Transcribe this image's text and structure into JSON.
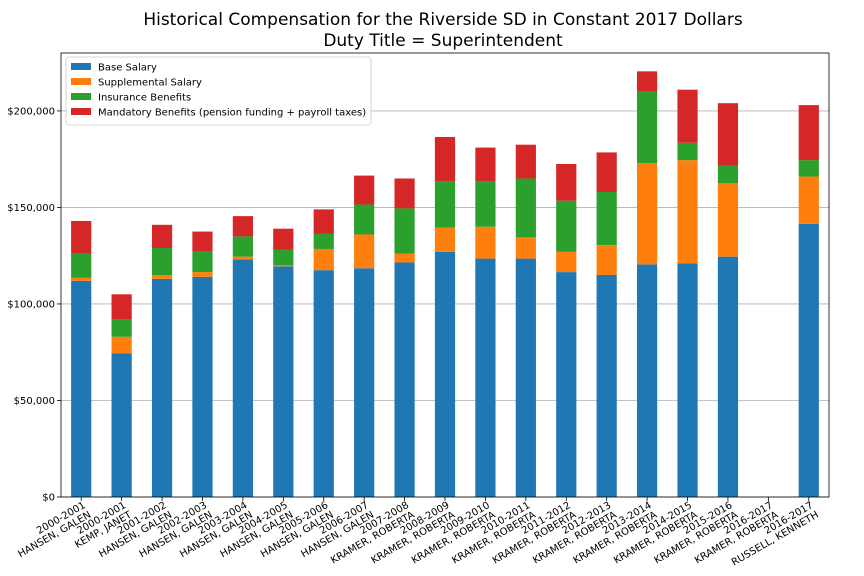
{
  "chart_data": {
    "type": "bar",
    "stacked": true,
    "title": "Historical Compensation for the Riverside SD in Constant 2017 Dollars",
    "subtitle": "Duty Title = Superintendent",
    "xlabel": "",
    "ylabel": "",
    "ylim": [
      0,
      230000
    ],
    "yticks": [
      0,
      50000,
      100000,
      150000,
      200000
    ],
    "ytick_labels": [
      "$0",
      "$50,000",
      "$100,000",
      "$150,000",
      "$200,000"
    ],
    "grid": "y",
    "legend_position": "top-left",
    "categories": [
      [
        "2000-2001",
        "HANSEN, GALEN"
      ],
      [
        "2000-2001",
        "KEMP, JANET"
      ],
      [
        "2001-2002",
        "HANSEN, GALEN"
      ],
      [
        "2002-2003",
        "HANSEN, GALEN"
      ],
      [
        "2003-2004",
        "HANSEN, GALEN"
      ],
      [
        "2004-2005",
        "HANSEN, GALEN"
      ],
      [
        "2005-2006",
        "HANSEN, GALEN"
      ],
      [
        "2006-2007",
        "HANSEN, GALEN"
      ],
      [
        "2007-2008",
        "KRAMER, ROBERTA"
      ],
      [
        "2008-2009",
        "KRAMER, ROBERTA"
      ],
      [
        "2009-2010",
        "KRAMER, ROBERTA"
      ],
      [
        "2010-2011",
        "KRAMER, ROBERTA"
      ],
      [
        "2011-2012",
        "KRAMER, ROBERTA"
      ],
      [
        "2012-2013",
        "KRAMER, ROBERTA"
      ],
      [
        "2013-2014",
        "KRAMER, ROBERTA"
      ],
      [
        "2014-2015",
        "KRAMER, ROBERTA"
      ],
      [
        "2015-2016",
        "KRAMER, ROBERTA"
      ],
      [
        "2016-2017",
        "KRAMER, ROBERTA"
      ],
      [
        "2016-2017",
        "RUSSELL, KENNETH"
      ]
    ],
    "series": [
      {
        "name": "Base Salary",
        "color": "#1f77b4",
        "values": [
          112000,
          74500,
          113000,
          114000,
          123000,
          119500,
          117500,
          118500,
          121500,
          127000,
          123500,
          123500,
          116500,
          115000,
          120500,
          121000,
          124500,
          0,
          141500
        ]
      },
      {
        "name": "Supplemental Salary",
        "color": "#ff7f0e",
        "values": [
          1500,
          8500,
          2000,
          2500,
          1500,
          500,
          11000,
          17500,
          4500,
          12500,
          16500,
          11000,
          10500,
          15500,
          52500,
          53500,
          38000,
          0,
          24500
        ]
      },
      {
        "name": "Insurance Benefits",
        "color": "#2ca02c",
        "values": [
          12500,
          9000,
          14000,
          10500,
          10500,
          8000,
          8000,
          15500,
          23500,
          24000,
          23500,
          30500,
          26500,
          27500,
          37000,
          9000,
          9000,
          0,
          8500
        ]
      },
      {
        "name": "Mandatory Benefits (pension funding + payroll taxes)",
        "color": "#d62728",
        "values": [
          17000,
          13000,
          12000,
          10500,
          10500,
          11000,
          12500,
          15000,
          15500,
          23000,
          17500,
          17500,
          19000,
          20500,
          10500,
          27500,
          32500,
          0,
          28500
        ]
      }
    ]
  }
}
